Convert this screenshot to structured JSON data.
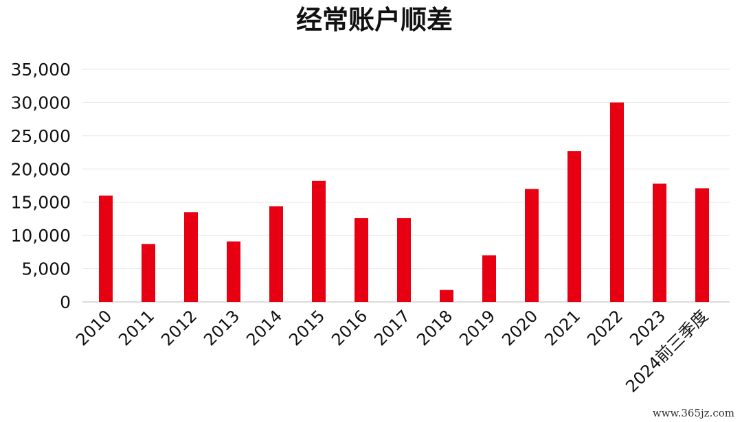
{
  "watermark": "www.365jz.com",
  "chart_data": {
    "type": "bar",
    "title": "经常账户顺差",
    "xlabel": "",
    "ylabel": "",
    "categories": [
      "2010",
      "2011",
      "2012",
      "2013",
      "2014",
      "2015",
      "2016",
      "2017",
      "2018",
      "2019",
      "2020",
      "2021",
      "2022",
      "2023",
      "2024前三季度"
    ],
    "values": [
      16000,
      8700,
      13500,
      9100,
      14400,
      18200,
      12600,
      12600,
      1800,
      7000,
      17000,
      22700,
      30000,
      17800,
      17100
    ],
    "ylim": [
      0,
      35000
    ],
    "yticks": [
      0,
      5000,
      10000,
      15000,
      20000,
      25000,
      30000,
      35000
    ],
    "ytick_labels": [
      "0",
      "5,000",
      "10,000",
      "15,000",
      "20,000",
      "25,000",
      "30,000",
      "35,000"
    ],
    "grid": true,
    "legend": "none",
    "bar_color": "#e60012"
  }
}
